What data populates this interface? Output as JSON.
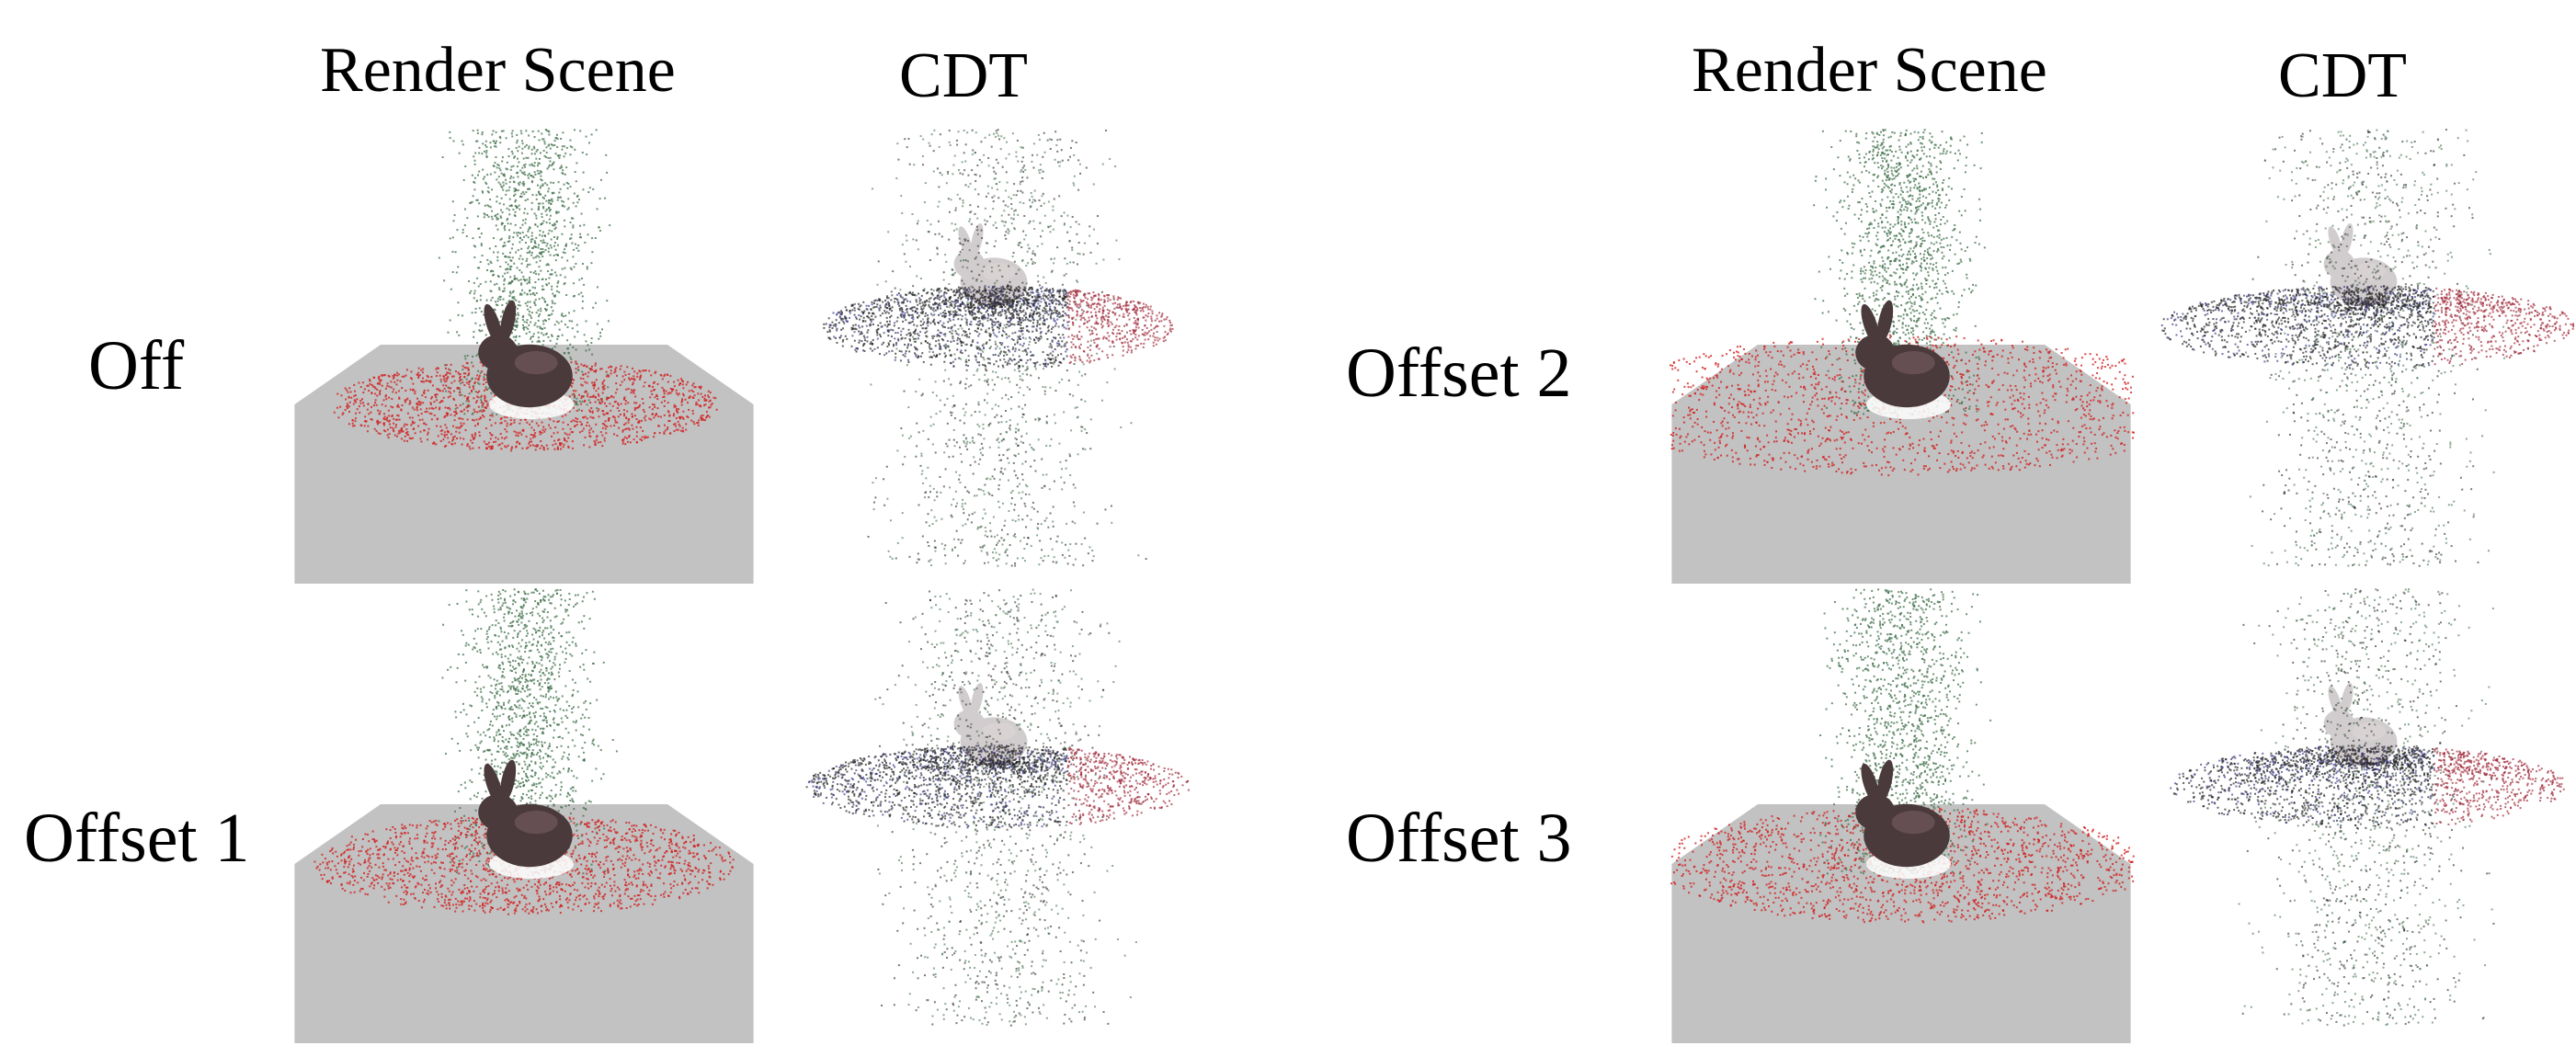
{
  "figure": {
    "headers": {
      "left_render": "Render Scene",
      "left_cdt": "CDT",
      "right_render": "Render Scene",
      "right_cdt": "CDT"
    },
    "row_labels": {
      "off": "Off",
      "offset1": "Offset 1",
      "offset2": "Offset 2",
      "offset3": "Offset 3"
    },
    "colors": {
      "ground_plane": "#c2c2c2",
      "bunny": "#4a3a3c",
      "bunny_highlight": "#8a6a6c",
      "particles_falling": "#3f6f4a",
      "particles_splash": "#d21e1e",
      "particles_cdt_dark": "#222222",
      "particles_cdt_blue": "#3a3a8a",
      "particles_cdt_red": "#a02a3a"
    }
  }
}
